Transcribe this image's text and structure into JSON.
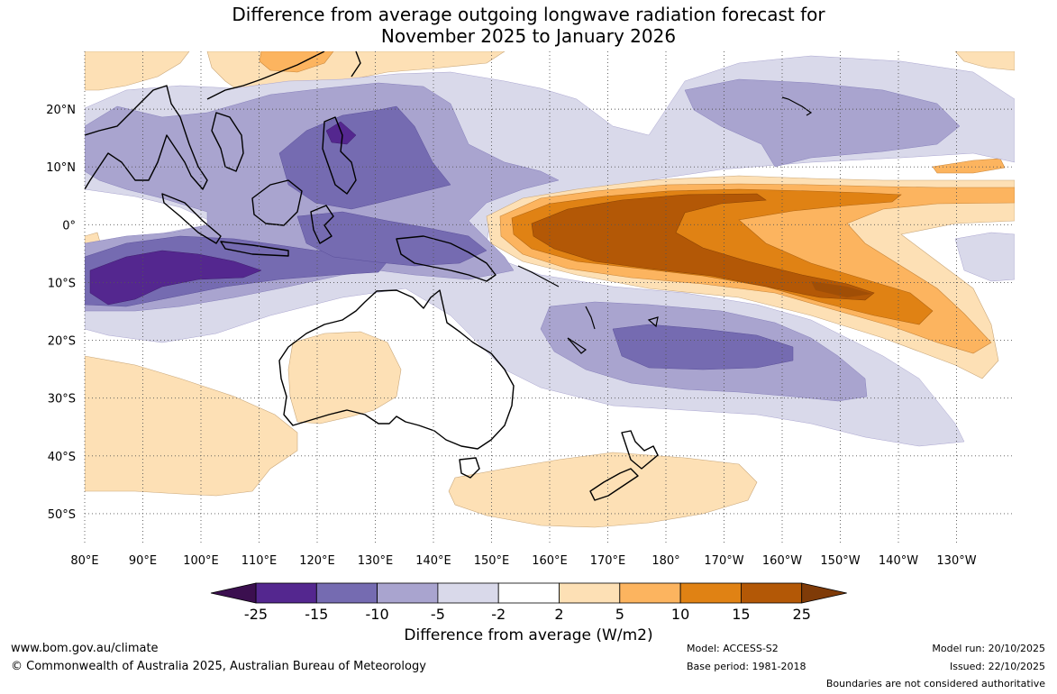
{
  "title_line1": "Difference from average outgoing longwave radiation forecast for",
  "title_line2": "November 2025 to January 2026",
  "lat_labels": [
    {
      "text": "20°N",
      "lat": 20
    },
    {
      "text": "10°N",
      "lat": 10
    },
    {
      "text": "0°",
      "lat": 0
    },
    {
      "text": "10°S",
      "lat": -10
    },
    {
      "text": "20°S",
      "lat": -20
    },
    {
      "text": "30°S",
      "lat": -30
    },
    {
      "text": "40°S",
      "lat": -40
    },
    {
      "text": "50°S",
      "lat": -50
    }
  ],
  "lon_labels": [
    {
      "text": "80°E",
      "lon": 80
    },
    {
      "text": "90°E",
      "lon": 90
    },
    {
      "text": "100°E",
      "lon": 100
    },
    {
      "text": "110°E",
      "lon": 110
    },
    {
      "text": "120°E",
      "lon": 120
    },
    {
      "text": "130°E",
      "lon": 130
    },
    {
      "text": "140°E",
      "lon": 140
    },
    {
      "text": "150°E",
      "lon": 150
    },
    {
      "text": "160°E",
      "lon": 160
    },
    {
      "text": "170°E",
      "lon": 170
    },
    {
      "text": "180°",
      "lon": 180
    },
    {
      "text": "170°W",
      "lon": 190
    },
    {
      "text": "160°W",
      "lon": 200
    },
    {
      "text": "150°W",
      "lon": 210
    },
    {
      "text": "140°W",
      "lon": 220
    },
    {
      "text": "130°W",
      "lon": 230
    }
  ],
  "colorbar": {
    "ticks": [
      "-25",
      "-15",
      "-10",
      "-5",
      "-2",
      "2",
      "5",
      "10",
      "15",
      "25"
    ],
    "colors": [
      "#3b0f4f",
      "#54278f",
      "#756bb1",
      "#a9a4cf",
      "#d9d9ea",
      "#ffffff",
      "#fde0b5",
      "#fcb45f",
      "#e08214",
      "#b35806",
      "#7f3b08"
    ],
    "label": "Difference from average (W/m2)"
  },
  "footer": {
    "url": "www.bom.gov.au/climate",
    "copyright": "© Commonwealth of Australia 2025, Australian Bureau of Meteorology",
    "model": "Model: ACCESS-S2",
    "base_period": "Base period: 1981-2018",
    "model_run": "Model run: 20/10/2025",
    "issued": "Issued: 22/10/2025",
    "disclaimer": "Boundaries are not considered authoritative"
  }
}
